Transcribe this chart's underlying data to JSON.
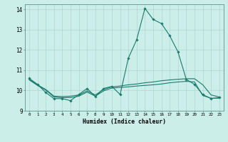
{
  "title": "",
  "xlabel": "Humidex (Indice chaleur)",
  "background_color": "#cceee8",
  "grid_color": "#aad8d0",
  "line_color": "#1a7a6e",
  "xlim": [
    -0.5,
    23.5
  ],
  "ylim": [
    9,
    14.25
  ],
  "yticks": [
    9,
    10,
    11,
    12,
    13,
    14
  ],
  "xticks": [
    0,
    1,
    2,
    3,
    4,
    5,
    6,
    7,
    8,
    9,
    10,
    11,
    12,
    13,
    14,
    15,
    16,
    17,
    18,
    19,
    20,
    21,
    22,
    23
  ],
  "series0": [
    10.6,
    10.3,
    9.9,
    9.6,
    9.6,
    9.5,
    9.8,
    10.1,
    9.7,
    10.1,
    10.2,
    9.8,
    11.6,
    12.5,
    14.05,
    13.5,
    13.3,
    12.7,
    11.9,
    10.55,
    10.3,
    9.8,
    9.6,
    9.65
  ],
  "series1": [
    10.55,
    10.28,
    10.05,
    9.72,
    9.7,
    9.72,
    9.78,
    9.98,
    9.78,
    10.05,
    10.18,
    10.22,
    10.28,
    10.32,
    10.38,
    10.42,
    10.48,
    10.52,
    10.55,
    10.58,
    10.58,
    10.28,
    9.78,
    9.68
  ],
  "series2": [
    10.52,
    10.25,
    10.02,
    9.68,
    9.65,
    9.65,
    9.72,
    9.92,
    9.72,
    9.98,
    10.12,
    10.15,
    10.18,
    10.22,
    10.25,
    10.28,
    10.32,
    10.38,
    10.42,
    10.45,
    10.42,
    9.75,
    9.62,
    9.62
  ]
}
